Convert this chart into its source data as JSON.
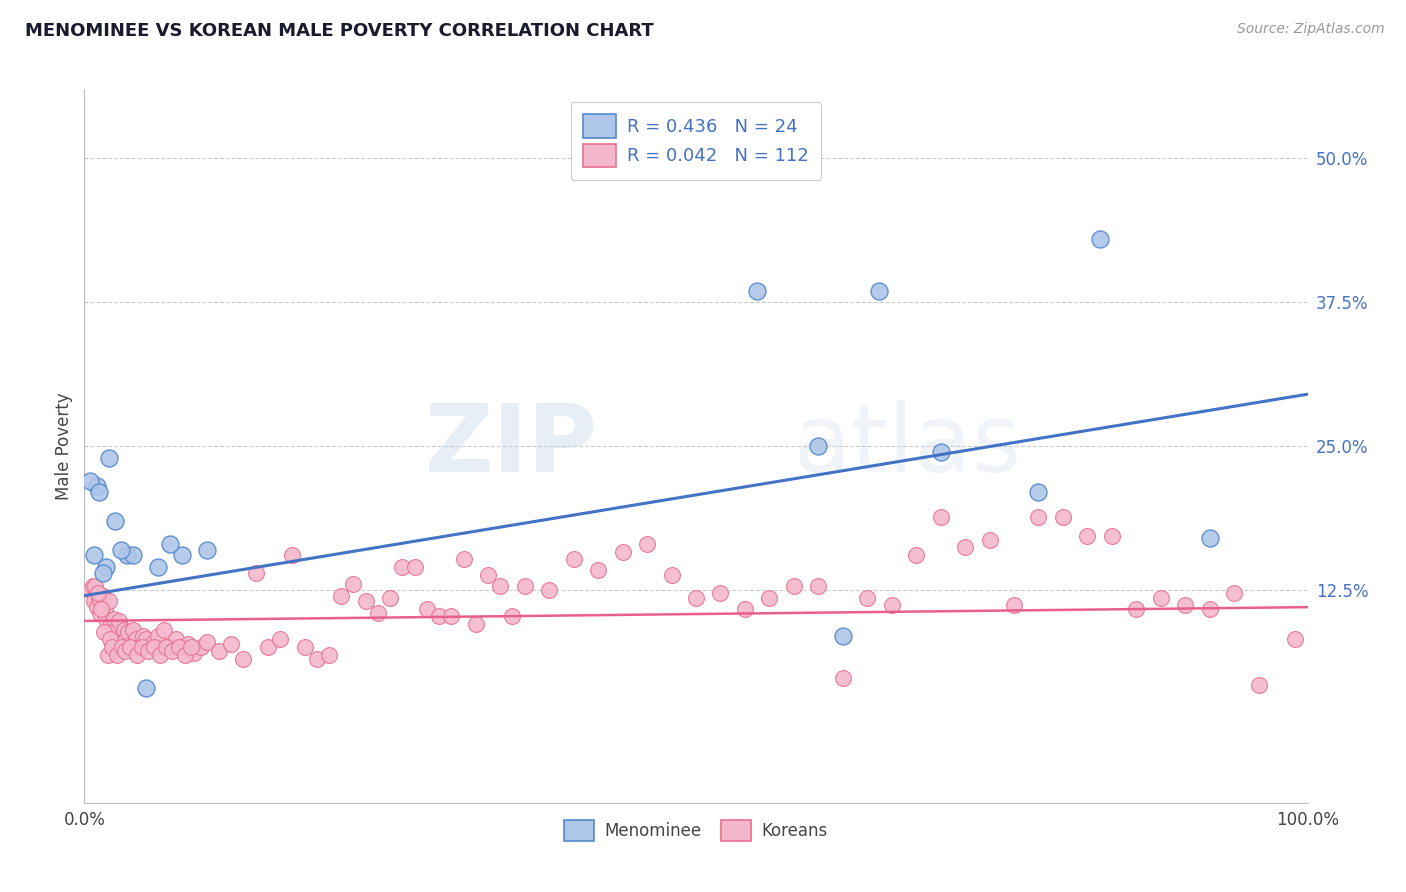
{
  "title": "MENOMINEE VS KOREAN MALE POVERTY CORRELATION CHART",
  "source": "Source: ZipAtlas.com",
  "ylabel": "Male Poverty",
  "xlim": [
    0.0,
    1.0
  ],
  "ylim": [
    -0.06,
    0.56
  ],
  "yticks": [
    0.125,
    0.25,
    0.375,
    0.5
  ],
  "ytick_labels": [
    "12.5%",
    "25.0%",
    "37.5%",
    "50.0%"
  ],
  "xticks": [
    0.0,
    1.0
  ],
  "xtick_labels": [
    "0.0%",
    "100.0%"
  ],
  "grid_color": "#cccccc",
  "background_color": "#ffffff",
  "menominee_color": "#aec6e8",
  "korean_color": "#f4b8cc",
  "menominee_edge_color": "#5588cc",
  "korean_edge_color": "#e87090",
  "menominee_line_color": "#4472c4",
  "korean_line_color": "#e8608a",
  "legend_R_menominee": "0.436",
  "legend_N_menominee": "24",
  "legend_R_korean": "0.042",
  "legend_N_korean": "112",
  "watermark_zip": "ZIP",
  "watermark_atlas": "atlas",
  "menominee_x": [
    0.02,
    0.01,
    0.005,
    0.012,
    0.008,
    0.018,
    0.025,
    0.035,
    0.04,
    0.06,
    0.08,
    0.1,
    0.62,
    0.6,
    0.55,
    0.7,
    0.78,
    0.83,
    0.92,
    0.65,
    0.05,
    0.07,
    0.015,
    0.03
  ],
  "menominee_y": [
    0.24,
    0.215,
    0.22,
    0.21,
    0.155,
    0.145,
    0.185,
    0.155,
    0.155,
    0.145,
    0.155,
    0.16,
    0.085,
    0.25,
    0.385,
    0.245,
    0.21,
    0.43,
    0.17,
    0.385,
    0.04,
    0.165,
    0.14,
    0.16
  ],
  "korean_x": [
    0.005,
    0.008,
    0.01,
    0.012,
    0.013,
    0.015,
    0.017,
    0.018,
    0.02,
    0.022,
    0.024,
    0.026,
    0.028,
    0.03,
    0.032,
    0.034,
    0.036,
    0.038,
    0.04,
    0.042,
    0.045,
    0.048,
    0.05,
    0.055,
    0.06,
    0.065,
    0.07,
    0.075,
    0.08,
    0.085,
    0.09,
    0.095,
    0.1,
    0.11,
    0.12,
    0.13,
    0.14,
    0.15,
    0.16,
    0.17,
    0.18,
    0.19,
    0.2,
    0.21,
    0.22,
    0.23,
    0.24,
    0.25,
    0.26,
    0.27,
    0.28,
    0.29,
    0.3,
    0.31,
    0.32,
    0.33,
    0.34,
    0.35,
    0.36,
    0.38,
    0.4,
    0.42,
    0.44,
    0.46,
    0.48,
    0.5,
    0.52,
    0.54,
    0.56,
    0.58,
    0.6,
    0.62,
    0.64,
    0.66,
    0.68,
    0.7,
    0.72,
    0.74,
    0.76,
    0.78,
    0.8,
    0.82,
    0.84,
    0.86,
    0.88,
    0.9,
    0.92,
    0.94,
    0.96,
    0.99,
    0.007,
    0.009,
    0.011,
    0.014,
    0.016,
    0.019,
    0.021,
    0.023,
    0.027,
    0.031,
    0.033,
    0.037,
    0.043,
    0.047,
    0.052,
    0.057,
    0.062,
    0.067,
    0.072,
    0.077,
    0.082,
    0.087
  ],
  "korean_y": [
    0.125,
    0.115,
    0.11,
    0.118,
    0.105,
    0.12,
    0.108,
    0.1,
    0.115,
    0.095,
    0.1,
    0.09,
    0.098,
    0.085,
    0.09,
    0.082,
    0.088,
    0.078,
    0.09,
    0.082,
    0.075,
    0.085,
    0.082,
    0.078,
    0.085,
    0.09,
    0.075,
    0.082,
    0.075,
    0.078,
    0.07,
    0.075,
    0.08,
    0.072,
    0.078,
    0.065,
    0.14,
    0.075,
    0.082,
    0.155,
    0.075,
    0.065,
    0.068,
    0.12,
    0.13,
    0.115,
    0.105,
    0.118,
    0.145,
    0.145,
    0.108,
    0.102,
    0.102,
    0.152,
    0.095,
    0.138,
    0.128,
    0.102,
    0.128,
    0.125,
    0.152,
    0.142,
    0.158,
    0.165,
    0.138,
    0.118,
    0.122,
    0.108,
    0.118,
    0.128,
    0.128,
    0.048,
    0.118,
    0.112,
    0.155,
    0.188,
    0.162,
    0.168,
    0.112,
    0.188,
    0.188,
    0.172,
    0.172,
    0.108,
    0.118,
    0.112,
    0.108,
    0.122,
    0.042,
    0.082,
    0.128,
    0.128,
    0.122,
    0.108,
    0.088,
    0.068,
    0.082,
    0.075,
    0.068,
    0.075,
    0.072,
    0.075,
    0.068,
    0.075,
    0.072,
    0.075,
    0.068,
    0.075,
    0.072,
    0.075,
    0.068,
    0.075
  ]
}
